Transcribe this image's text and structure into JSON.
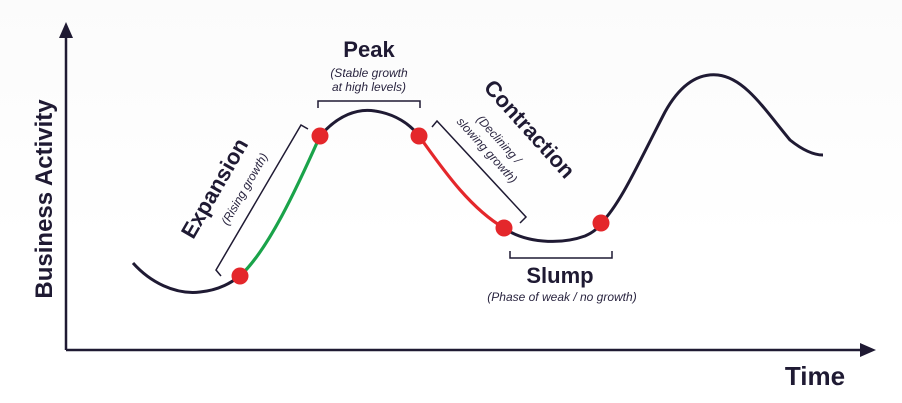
{
  "axes": {
    "y_label": "Business Activity",
    "x_label": "Time"
  },
  "phases": {
    "expansion": {
      "title": "Expansion",
      "note": "(Rising growth)",
      "color": "#1aa34a"
    },
    "peak": {
      "title": "Peak",
      "note_line1": "(Stable growth",
      "note_line2": "at high levels)"
    },
    "contraction": {
      "title": "Contraction",
      "note_line1": "(Declining /",
      "note_line2": "slowing growth)",
      "color": "#e4272b"
    },
    "slump": {
      "title": "Slump",
      "note": "(Phase of weak / no growth)"
    }
  },
  "colors": {
    "curve": "#1f1a33",
    "marker": "#e4272b",
    "axis": "#1f1a33",
    "bracket": "#1f1a33"
  }
}
